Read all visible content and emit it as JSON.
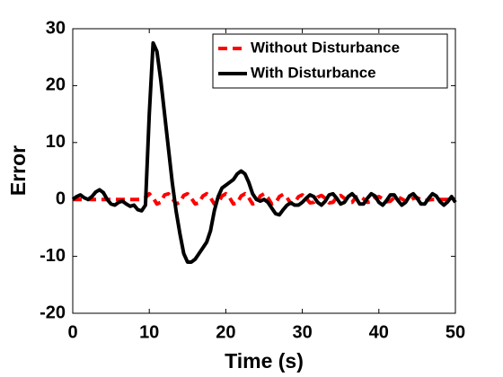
{
  "chart_data": {
    "type": "line",
    "xlabel": "Time (s)",
    "ylabel": "Error",
    "x": [
      0,
      0.5,
      1,
      1.5,
      2,
      2.5,
      3,
      3.5,
      4,
      4.5,
      5,
      5.5,
      6,
      6.5,
      7,
      7.5,
      8,
      8.5,
      9,
      9.5,
      10,
      10.5,
      11,
      11.5,
      12,
      12.5,
      13,
      13.5,
      14,
      14.5,
      15,
      15.5,
      16,
      16.5,
      17,
      17.5,
      18,
      18.5,
      19,
      19.5,
      20,
      20.5,
      21,
      21.5,
      22,
      22.5,
      23,
      23.5,
      24,
      24.5,
      25,
      25.5,
      26,
      26.5,
      27,
      27.5,
      28,
      28.5,
      29,
      29.5,
      30,
      30.5,
      31,
      31.5,
      32,
      32.5,
      33,
      33.5,
      34,
      34.5,
      35,
      35.5,
      36,
      36.5,
      37,
      37.5,
      38,
      38.5,
      39,
      39.5,
      40,
      40.5,
      41,
      41.5,
      42,
      42.5,
      43,
      43.5,
      44,
      44.5,
      45,
      45.5,
      46,
      46.5,
      47,
      47.5,
      48,
      48.5,
      49,
      49.5,
      50
    ],
    "series": [
      {
        "name": "Without Disturbance",
        "color": "#ff0000",
        "dash": true,
        "values": [
          0,
          0,
          0,
          0,
          0,
          0,
          0,
          0,
          0,
          0,
          0,
          0,
          0,
          0,
          0,
          0,
          0,
          0,
          0,
          0.3,
          1,
          0.3,
          -0.8,
          -0.5,
          0.8,
          1,
          0.2,
          -0.8,
          -0.5,
          0.7,
          1,
          0.2,
          -0.8,
          -0.6,
          0.6,
          1,
          0.3,
          -0.8,
          -0.6,
          0.6,
          1,
          0.3,
          -0.8,
          -0.6,
          0.6,
          1,
          0.3,
          -0.8,
          -0.6,
          0.6,
          1,
          0.3,
          -0.8,
          -0.6,
          0.5,
          0.9,
          0.3,
          -0.7,
          -0.6,
          0.5,
          0.8,
          0.2,
          -0.6,
          -0.5,
          0.4,
          0.7,
          0.2,
          -0.6,
          -0.5,
          0.4,
          0.7,
          0.2,
          -0.5,
          -0.5,
          0.4,
          0.6,
          0.1,
          -0.5,
          -0.4,
          0.3,
          0.5,
          0.1,
          -0.4,
          -0.3,
          0.3,
          0.4,
          0.1,
          -0.3,
          -0.3,
          0.2,
          0.3,
          0,
          -0.2,
          -0.1,
          0,
          0,
          0,
          0,
          0,
          0,
          0
        ]
      },
      {
        "name": "With Disturbance",
        "color": "#000000",
        "dash": false,
        "values": [
          0,
          0.5,
          0.8,
          0.3,
          0,
          0.5,
          1.3,
          1.7,
          1.2,
          0,
          -0.8,
          -1,
          -0.5,
          -0.3,
          -0.8,
          -1.2,
          -1,
          -1.8,
          -2,
          -1,
          15,
          27.5,
          26,
          21,
          15,
          9,
          3,
          -2,
          -6,
          -9.5,
          -11,
          -11,
          -10.5,
          -9.5,
          -8.5,
          -7.5,
          -5.5,
          -2,
          0.5,
          2,
          2.5,
          3,
          3.5,
          4.5,
          5,
          4.5,
          3,
          1,
          0,
          -0.3,
          0,
          -0.5,
          -1.5,
          -2.5,
          -2.7,
          -1.8,
          -1,
          -0.6,
          -1,
          -1,
          -0.5,
          0.2,
          0.8,
          0.5,
          -0.5,
          -1,
          -0.3,
          0.8,
          1,
          0.2,
          -0.8,
          -0.5,
          0.5,
          1,
          0.3,
          -0.8,
          -0.8,
          0.2,
          1,
          0.6,
          -0.5,
          -1,
          -0.2,
          0.8,
          0.8,
          -0.2,
          -1,
          -0.5,
          0.6,
          1,
          0.2,
          -0.8,
          -0.8,
          0.2,
          1,
          0.6,
          -0.4,
          -1,
          -0.4,
          0.5,
          -0.5
        ]
      }
    ],
    "xlim": [
      0,
      50
    ],
    "xticks": [
      0,
      10,
      20,
      30,
      40,
      50
    ],
    "ylim": [
      -20,
      30
    ],
    "yticks": [
      -20,
      -10,
      0,
      10,
      20,
      30
    ],
    "grid": false,
    "legend": "upper right"
  }
}
